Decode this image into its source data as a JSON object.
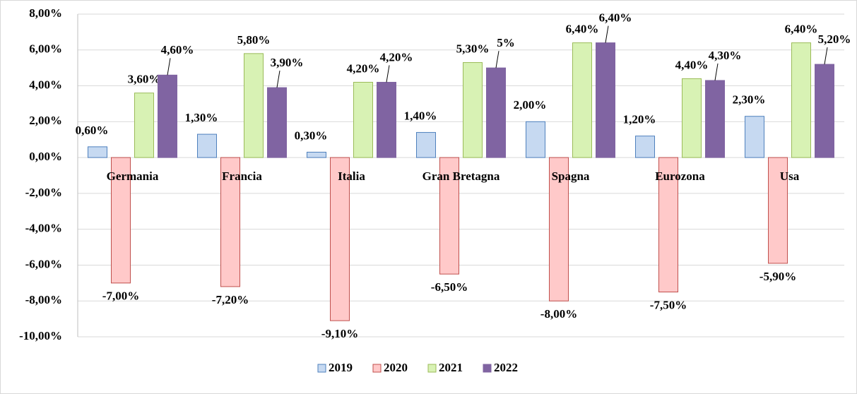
{
  "chart_data": {
    "type": "bar",
    "categories": [
      "Germania",
      "Francia",
      "Italia",
      "Gran Bretagna",
      "Spagna",
      "Eurozona",
      "Usa"
    ],
    "series": [
      {
        "name": "2019",
        "color": "#c6d9f1",
        "values": [
          0.6,
          1.3,
          0.3,
          1.4,
          2.0,
          1.2,
          2.3
        ],
        "value_labels": [
          "0,60%",
          "1,30%",
          "0,30%",
          "1,40%",
          "2,00%",
          "1,20%",
          "2,30%"
        ]
      },
      {
        "name": "2020",
        "color": "#ffc9c9",
        "values": [
          -7.0,
          -7.2,
          -9.1,
          -6.5,
          -8.0,
          -7.5,
          -5.9
        ],
        "value_labels": [
          "-7,00%",
          "-7,20%",
          "-9,10%",
          "-6,50%",
          "-8,00%",
          "-7,50%",
          "-5,90%"
        ]
      },
      {
        "name": "2021",
        "color": "#d8f2b4",
        "values": [
          3.6,
          5.8,
          4.2,
          5.3,
          6.4,
          4.4,
          6.4
        ],
        "value_labels": [
          "3,60%",
          "5,80%",
          "4,20%",
          "5,30%",
          "6,40%",
          "4,40%",
          "6,40%"
        ]
      },
      {
        "name": "2022",
        "color": "#8064a2",
        "values": [
          4.6,
          3.9,
          4.2,
          5,
          6.4,
          4.3,
          5.2
        ],
        "value_labels": [
          "4,60%",
          "3,90%",
          "4,20%",
          "5%",
          "6,40%",
          "4,30%",
          "5,20%"
        ]
      }
    ],
    "ylim": [
      -10,
      8
    ],
    "yticks": [
      {
        "value": -10,
        "label": "-10,00%"
      },
      {
        "value": -8,
        "label": "-8,00%"
      },
      {
        "value": -6,
        "label": "-6,00%"
      },
      {
        "value": -4,
        "label": "-4,00%"
      },
      {
        "value": -2,
        "label": "-2,00%"
      },
      {
        "value": 0,
        "label": "0,00%"
      },
      {
        "value": 2,
        "label": "2,00%"
      },
      {
        "value": 4,
        "label": "4,00%"
      },
      {
        "value": 6,
        "label": "6,00%"
      },
      {
        "value": 8,
        "label": "8,00%"
      }
    ],
    "grid": true,
    "legend": "bottom"
  }
}
